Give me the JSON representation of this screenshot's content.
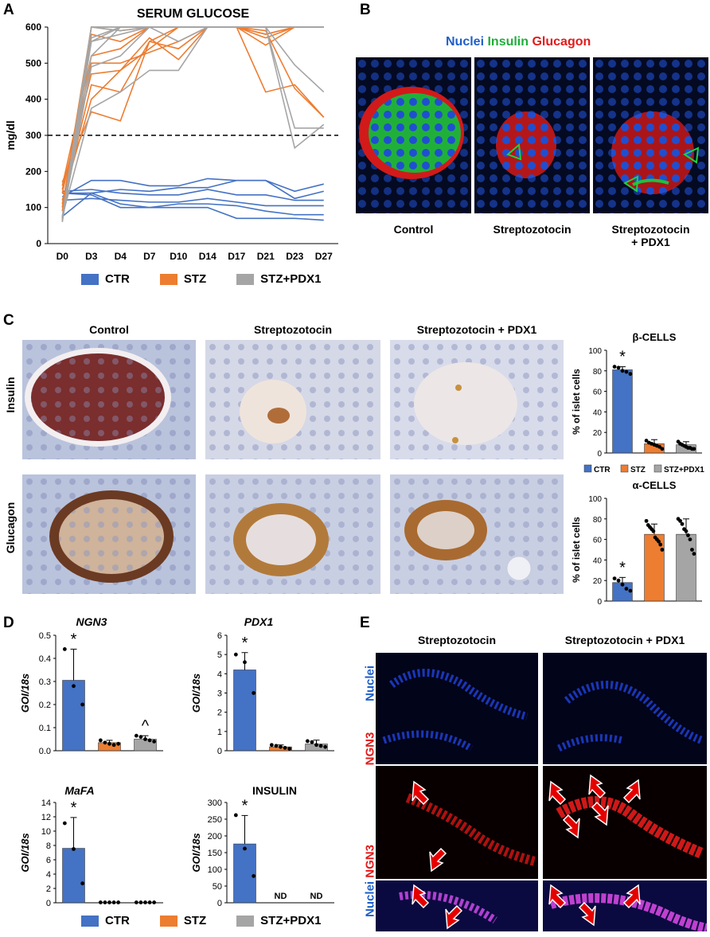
{
  "panels": {
    "a": "A",
    "b": "B",
    "c": "C",
    "d": "D",
    "e": "E"
  },
  "colors": {
    "ctr": "#4472c4",
    "stz": "#ed7d31",
    "pdx1": "#a5a5a5",
    "fluor_blue": "#1f5fc8",
    "fluor_green": "#1fae3a",
    "fluor_red": "#e31a1a"
  },
  "panelB": {
    "stain": [
      "Nuclei",
      "Insulin",
      "Glucagon"
    ],
    "captions": {
      "control": "Control",
      "stz": "Streptozotocin",
      "pdx1_line1": "Streptozotocin",
      "pdx1_line2": "+ PDX1"
    }
  },
  "panelC": {
    "cols": [
      "Control",
      "Streptozotocin",
      "Streptozotocin + PDX1"
    ],
    "rows": [
      "Insulin",
      "Glucagon"
    ]
  },
  "panelE": {
    "cols": [
      "Streptozotocin",
      "Streptozotocin + PDX1"
    ],
    "rows": {
      "nuclei": "Nuclei",
      "ngn3": "NGN3",
      "merge_a": "Nuclei",
      "merge_b": "NGN3"
    }
  },
  "legend": {
    "ctr": "CTR",
    "stz": "STZ",
    "pdx1": "STZ+PDX1"
  },
  "chart_data": [
    {
      "id": "glucose",
      "type": "line",
      "title": "SERUM GLUCOSE",
      "ylabel": "mg/dl",
      "ylim": [
        0,
        600
      ],
      "yticks": [
        0,
        100,
        200,
        300,
        400,
        500,
        600
      ],
      "categories": [
        "D0",
        "D3",
        "D4",
        "D7",
        "D10",
        "D14",
        "D17",
        "D21",
        "D23",
        "D27"
      ],
      "threshold": 300,
      "groups": [
        {
          "name": "CTR",
          "color": "#4472c4",
          "lines": [
            [
              130,
              175,
              175,
              160,
              160,
              180,
              175,
              175,
              145,
              165
            ],
            [
              140,
              140,
              150,
              145,
              155,
              155,
              175,
              175,
              125,
              145
            ],
            [
              145,
              150,
              140,
              135,
              135,
              150,
              135,
              135,
              120,
              120
            ],
            [
              120,
              125,
              120,
              115,
              115,
              125,
              115,
              105,
              105,
              105
            ],
            [
              75,
              140,
              110,
              100,
              110,
              110,
              105,
              90,
              80,
              80
            ],
            [
              140,
              135,
              100,
              100,
              100,
              100,
              70,
              70,
              70,
              65
            ]
          ]
        },
        {
          "name": "STZ",
          "color": "#ed7d31",
          "lines": [
            [
              170,
              365,
              340,
              560,
              600,
              600,
              600,
              580,
              600,
              600
            ],
            [
              160,
              520,
              540,
              600,
              600,
              600,
              600,
              580,
              600,
              600
            ],
            [
              150,
              470,
              480,
              570,
              510,
              600,
              600,
              570,
              600,
              600
            ],
            [
              140,
              500,
              500,
              530,
              560,
              600,
              600,
              600,
              600,
              600
            ],
            [
              110,
              440,
              420,
              560,
              540,
              600,
              600,
              590,
              430,
              350
            ],
            [
              120,
              400,
              480,
              540,
              600,
              600,
              600,
              420,
              440,
              350
            ],
            [
              90,
              580,
              560,
              600,
              600,
              600,
              600,
              550,
              600,
              600
            ],
            [
              100,
              600,
              590,
              600,
              600,
              600,
              600,
              600,
              600,
              600
            ]
          ]
        },
        {
          "name": "STZ+PDX1",
          "color": "#a5a5a5",
          "lines": [
            [
              75,
              375,
              420,
              480,
              480,
              600,
              600,
              600,
              600,
              600
            ],
            [
              70,
              490,
              520,
              600,
              600,
              600,
              600,
              600,
              600,
              600
            ],
            [
              60,
              560,
              580,
              600,
              600,
              600,
              600,
              600,
              600,
              600
            ],
            [
              65,
              600,
              600,
              600,
              600,
              600,
              600,
              600,
              600,
              600
            ],
            [
              70,
              560,
              600,
              600,
              600,
              600,
              600,
              600,
              600,
              600
            ],
            [
              65,
              520,
              600,
              600,
              600,
              600,
              600,
              600,
              600,
              600
            ],
            [
              60,
              600,
              600,
              600,
              560,
              600,
              600,
              600,
              600,
              600
            ],
            [
              70,
              570,
              600,
              600,
              600,
              600,
              600,
              600,
              495,
              420
            ],
            [
              70,
              600,
              600,
              600,
              600,
              600,
              600,
              600,
              320,
              320
            ],
            [
              75,
              600,
              590,
              600,
              600,
              600,
              600,
              600,
              265,
              330
            ]
          ]
        }
      ]
    },
    {
      "id": "beta",
      "type": "bar",
      "title": "β-CELLS",
      "ylabel": "% of islet cells",
      "ylim": [
        0,
        100
      ],
      "yticks": [
        0,
        20,
        40,
        60,
        80,
        100
      ],
      "categories": [
        "CTR",
        "STZ",
        "STZ+PDX1"
      ],
      "values": [
        81,
        9,
        8
      ],
      "errors": [
        3,
        4,
        3
      ],
      "points": [
        [
          84,
          83,
          80,
          79,
          77
        ],
        [
          12,
          10,
          9,
          8,
          7,
          6,
          4
        ],
        [
          11,
          9,
          8,
          7,
          6,
          5,
          5,
          4,
          4
        ]
      ],
      "annotations": [
        "*",
        "",
        ""
      ]
    },
    {
      "id": "alpha",
      "type": "bar",
      "title": "α-CELLS",
      "ylabel": "% of islet cells",
      "ylim": [
        0,
        100
      ],
      "yticks": [
        0,
        20,
        40,
        60,
        80,
        100
      ],
      "categories": [
        "CTR",
        "STZ",
        "STZ+PDX1"
      ],
      "values": [
        18,
        65,
        65
      ],
      "errors": [
        5,
        10,
        15
      ],
      "points": [
        [
          22,
          20,
          16,
          12,
          10
        ],
        [
          78,
          74,
          72,
          70,
          68,
          62,
          60,
          58,
          55,
          50
        ],
        [
          80,
          78,
          75,
          70,
          68,
          64,
          60,
          50,
          46
        ]
      ],
      "annotations": [
        "*",
        "",
        ""
      ]
    },
    {
      "id": "ngn3",
      "type": "bar",
      "title": "NGN3",
      "ylabel": "GOI/18s",
      "ylim": [
        0,
        0.5
      ],
      "yticks": [
        0,
        0.1,
        0.2,
        0.3,
        0.4,
        0.5
      ],
      "yticklabels": [
        "0.0",
        "0.1",
        "0.2",
        "0.3",
        "0.4",
        "0.5"
      ],
      "categories": [
        "CTR",
        "STZ",
        "STZ+PDX1"
      ],
      "values": [
        0.305,
        0.035,
        0.05
      ],
      "errors": [
        0.135,
        0.01,
        0.015
      ],
      "points": [
        [
          0.44,
          0.28,
          0.2
        ],
        [
          0.045,
          0.035,
          0.03,
          0.025,
          0.03
        ],
        [
          0.065,
          0.06,
          0.05,
          0.045,
          0.04
        ]
      ],
      "annotations": [
        "*",
        "",
        "^"
      ]
    },
    {
      "id": "pdx1",
      "type": "bar",
      "title": "PDX1",
      "ylabel": "GOI/18s",
      "ylim": [
        0,
        6
      ],
      "yticks": [
        0,
        1,
        2,
        3,
        4,
        5,
        6
      ],
      "categories": [
        "CTR",
        "STZ",
        "STZ+PDX1"
      ],
      "values": [
        4.2,
        0.2,
        0.35
      ],
      "errors": [
        0.9,
        0.1,
        0.2
      ],
      "points": [
        [
          5.0,
          4.6,
          3.0
        ],
        [
          0.3,
          0.25,
          0.2,
          0.15,
          0.1
        ],
        [
          0.5,
          0.45,
          0.3,
          0.25,
          0.2
        ]
      ],
      "annotations": [
        "*",
        "",
        ""
      ]
    },
    {
      "id": "mafa",
      "type": "bar",
      "title": "MaFA",
      "ylabel": "GOI/18s",
      "ylim": [
        0,
        14
      ],
      "yticks": [
        0,
        2,
        4,
        6,
        8,
        10,
        12,
        14
      ],
      "categories": [
        "CTR",
        "STZ",
        "STZ+PDX1"
      ],
      "values": [
        7.6,
        0.05,
        0.05
      ],
      "errors": [
        4.3,
        0,
        0
      ],
      "points": [
        [
          11.1,
          7.5,
          2.7
        ],
        [
          0.05,
          0.05,
          0.05,
          0.05,
          0.05
        ],
        [
          0.05,
          0.05,
          0.05,
          0.05,
          0.05
        ]
      ],
      "annotations": [
        "*",
        "",
        ""
      ]
    },
    {
      "id": "insulin",
      "type": "bar",
      "title": "INSULIN",
      "ylabel": "GOI/18s",
      "ylim": [
        0,
        300
      ],
      "yticks": [
        0,
        50,
        100,
        150,
        200,
        250,
        300
      ],
      "categories": [
        "CTR",
        "STZ",
        "STZ+PDX1"
      ],
      "values": [
        176,
        0,
        0
      ],
      "errors": [
        85,
        0,
        0
      ],
      "points": [
        [
          262,
          162,
          80
        ],
        [],
        []
      ],
      "annotations": [
        "*",
        "ND",
        "ND"
      ]
    }
  ]
}
